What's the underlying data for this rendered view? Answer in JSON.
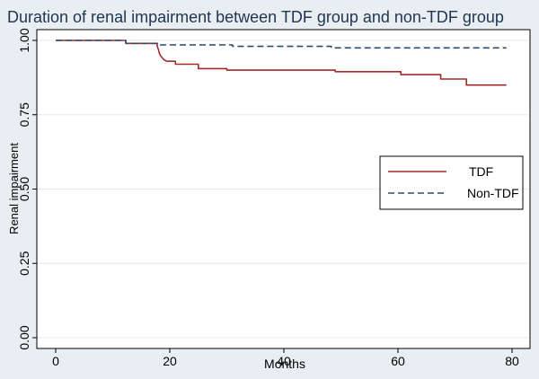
{
  "chart_data": {
    "type": "line",
    "title": "Duration of renal impairment between TDF group and non-TDF group",
    "xlabel": "Months",
    "ylabel": "Renal impairment",
    "xlim": [
      0,
      80
    ],
    "ylim": [
      0,
      1
    ],
    "x_ticks": [
      "0",
      "20",
      "40",
      "60",
      "80"
    ],
    "y_ticks": [
      "0.00",
      "0.25",
      "0.50",
      "0.75",
      "1.00"
    ],
    "grid": "horizontal",
    "legend_position": "right",
    "colors": {
      "tdf": "#a52a2a",
      "non_tdf": "#2b4a6e",
      "plot_background": "#ffffff",
      "outer_background": "#e8eef2",
      "grid": "#e6eef2"
    },
    "series": [
      {
        "name": "TDF",
        "style": "solid",
        "points": [
          [
            0,
            1.0
          ],
          [
            12.3,
            1.0
          ],
          [
            12.3,
            0.99
          ],
          [
            17.8,
            0.99
          ],
          [
            17.8,
            0.98
          ],
          [
            18.0,
            0.97
          ],
          [
            18.2,
            0.955
          ],
          [
            18.5,
            0.945
          ],
          [
            19.0,
            0.935
          ],
          [
            19.5,
            0.93
          ],
          [
            21.0,
            0.93
          ],
          [
            21.0,
            0.92
          ],
          [
            25.0,
            0.92
          ],
          [
            25.0,
            0.905
          ],
          [
            30.0,
            0.905
          ],
          [
            30.0,
            0.9
          ],
          [
            49.0,
            0.9
          ],
          [
            49.0,
            0.895
          ],
          [
            60.5,
            0.895
          ],
          [
            60.5,
            0.885
          ],
          [
            67.5,
            0.885
          ],
          [
            67.5,
            0.87
          ],
          [
            72.0,
            0.87
          ],
          [
            72.0,
            0.85
          ],
          [
            79.0,
            0.85
          ]
        ]
      },
      {
        "name": "Non-TDF",
        "style": "dashed",
        "points": [
          [
            0,
            1.0
          ],
          [
            12.3,
            1.0
          ],
          [
            12.3,
            0.99
          ],
          [
            18.2,
            0.99
          ],
          [
            18.2,
            0.985
          ],
          [
            31.0,
            0.985
          ],
          [
            31.0,
            0.98
          ],
          [
            48.3,
            0.98
          ],
          [
            48.3,
            0.975
          ],
          [
            79.0,
            0.975
          ]
        ]
      }
    ]
  }
}
